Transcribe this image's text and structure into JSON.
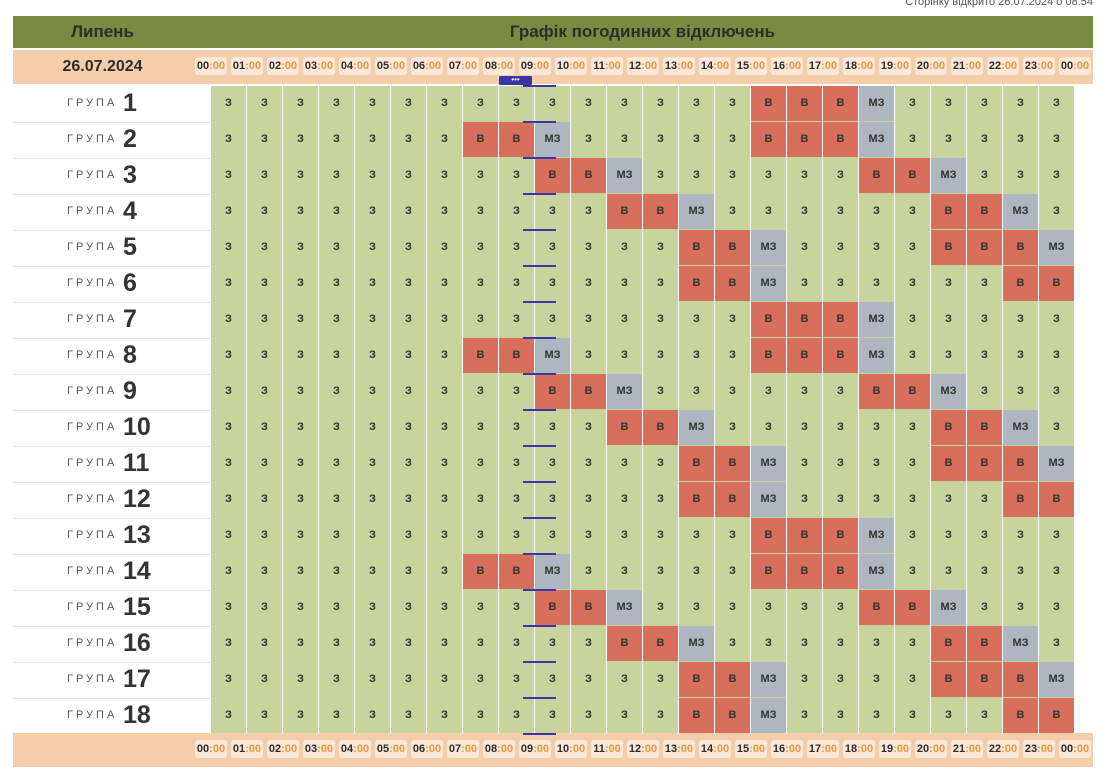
{
  "page_opened_note": "Сторінку відкрито 26.07.2024 о 08:54",
  "header": {
    "month": "Липень",
    "title": "Графік погодинних відключень"
  },
  "date": "26.07.2024",
  "group_word": "ГРУПА",
  "now_marker": "•••",
  "now_hour_index": 9,
  "hours": [
    "00",
    "01",
    "02",
    "03",
    "04",
    "05",
    "06",
    "07",
    "08",
    "09",
    "10",
    "11",
    "12",
    "13",
    "14",
    "15",
    "16",
    "17",
    "18",
    "19",
    "20",
    "21",
    "22",
    "23",
    "00"
  ],
  "hours_suffix": ":00",
  "status_labels": {
    "z": "З",
    "v": "В",
    "mz": "МЗ"
  },
  "status_colors": {
    "z": "#c7d49d",
    "v": "#d86f5d",
    "mz": "#aeb6bf"
  },
  "groups": [
    {
      "number": "1",
      "slots": [
        "z",
        "z",
        "z",
        "z",
        "z",
        "z",
        "z",
        "z",
        "z",
        "z",
        "z",
        "z",
        "z",
        "z",
        "z",
        "v",
        "v",
        "v",
        "mz",
        "z",
        "z",
        "z",
        "z",
        "z"
      ]
    },
    {
      "number": "2",
      "slots": [
        "z",
        "z",
        "z",
        "z",
        "z",
        "z",
        "z",
        "v",
        "v",
        "mz",
        "z",
        "z",
        "z",
        "z",
        "z",
        "v",
        "v",
        "v",
        "mz",
        "z",
        "z",
        "z",
        "z",
        "z"
      ]
    },
    {
      "number": "3",
      "slots": [
        "z",
        "z",
        "z",
        "z",
        "z",
        "z",
        "z",
        "z",
        "z",
        "v",
        "v",
        "mz",
        "z",
        "z",
        "z",
        "z",
        "z",
        "z",
        "v",
        "v",
        "mz",
        "z",
        "z",
        "z"
      ]
    },
    {
      "number": "4",
      "slots": [
        "z",
        "z",
        "z",
        "z",
        "z",
        "z",
        "z",
        "z",
        "z",
        "z",
        "z",
        "v",
        "v",
        "mz",
        "z",
        "z",
        "z",
        "z",
        "z",
        "z",
        "v",
        "v",
        "mz",
        "z"
      ]
    },
    {
      "number": "5",
      "slots": [
        "z",
        "z",
        "z",
        "z",
        "z",
        "z",
        "z",
        "z",
        "z",
        "z",
        "z",
        "z",
        "z",
        "v",
        "v",
        "mz",
        "z",
        "z",
        "z",
        "z",
        "v",
        "v",
        "v",
        "mz"
      ]
    },
    {
      "number": "6",
      "slots": [
        "z",
        "z",
        "z",
        "z",
        "z",
        "z",
        "z",
        "z",
        "z",
        "z",
        "z",
        "z",
        "z",
        "v",
        "v",
        "mz",
        "z",
        "z",
        "z",
        "z",
        "z",
        "z",
        "v",
        "v"
      ]
    },
    {
      "number": "7",
      "slots": [
        "z",
        "z",
        "z",
        "z",
        "z",
        "z",
        "z",
        "z",
        "z",
        "z",
        "z",
        "z",
        "z",
        "z",
        "z",
        "v",
        "v",
        "v",
        "mz",
        "z",
        "z",
        "z",
        "z",
        "z"
      ]
    },
    {
      "number": "8",
      "slots": [
        "z",
        "z",
        "z",
        "z",
        "z",
        "z",
        "z",
        "v",
        "v",
        "mz",
        "z",
        "z",
        "z",
        "z",
        "z",
        "v",
        "v",
        "v",
        "mz",
        "z",
        "z",
        "z",
        "z",
        "z"
      ]
    },
    {
      "number": "9",
      "slots": [
        "z",
        "z",
        "z",
        "z",
        "z",
        "z",
        "z",
        "z",
        "z",
        "v",
        "v",
        "mz",
        "z",
        "z",
        "z",
        "z",
        "z",
        "z",
        "v",
        "v",
        "mz",
        "z",
        "z",
        "z"
      ]
    },
    {
      "number": "10",
      "slots": [
        "z",
        "z",
        "z",
        "z",
        "z",
        "z",
        "z",
        "z",
        "z",
        "z",
        "z",
        "v",
        "v",
        "mz",
        "z",
        "z",
        "z",
        "z",
        "z",
        "z",
        "v",
        "v",
        "mz",
        "z"
      ]
    },
    {
      "number": "11",
      "slots": [
        "z",
        "z",
        "z",
        "z",
        "z",
        "z",
        "z",
        "z",
        "z",
        "z",
        "z",
        "z",
        "z",
        "v",
        "v",
        "mz",
        "z",
        "z",
        "z",
        "z",
        "v",
        "v",
        "v",
        "mz"
      ]
    },
    {
      "number": "12",
      "slots": [
        "z",
        "z",
        "z",
        "z",
        "z",
        "z",
        "z",
        "z",
        "z",
        "z",
        "z",
        "z",
        "z",
        "v",
        "v",
        "mz",
        "z",
        "z",
        "z",
        "z",
        "z",
        "z",
        "v",
        "v"
      ]
    },
    {
      "number": "13",
      "slots": [
        "z",
        "z",
        "z",
        "z",
        "z",
        "z",
        "z",
        "z",
        "z",
        "z",
        "z",
        "z",
        "z",
        "z",
        "z",
        "v",
        "v",
        "v",
        "mz",
        "z",
        "z",
        "z",
        "z",
        "z"
      ]
    },
    {
      "number": "14",
      "slots": [
        "z",
        "z",
        "z",
        "z",
        "z",
        "z",
        "z",
        "v",
        "v",
        "mz",
        "z",
        "z",
        "z",
        "z",
        "z",
        "v",
        "v",
        "v",
        "mz",
        "z",
        "z",
        "z",
        "z",
        "z"
      ]
    },
    {
      "number": "15",
      "slots": [
        "z",
        "z",
        "z",
        "z",
        "z",
        "z",
        "z",
        "z",
        "z",
        "v",
        "v",
        "mz",
        "z",
        "z",
        "z",
        "z",
        "z",
        "z",
        "v",
        "v",
        "mz",
        "z",
        "z",
        "z"
      ]
    },
    {
      "number": "16",
      "slots": [
        "z",
        "z",
        "z",
        "z",
        "z",
        "z",
        "z",
        "z",
        "z",
        "z",
        "z",
        "v",
        "v",
        "mz",
        "z",
        "z",
        "z",
        "z",
        "z",
        "z",
        "v",
        "v",
        "mz",
        "z"
      ]
    },
    {
      "number": "17",
      "slots": [
        "z",
        "z",
        "z",
        "z",
        "z",
        "z",
        "z",
        "z",
        "z",
        "z",
        "z",
        "z",
        "z",
        "v",
        "v",
        "mz",
        "z",
        "z",
        "z",
        "z",
        "v",
        "v",
        "v",
        "mz"
      ]
    },
    {
      "number": "18",
      "slots": [
        "z",
        "z",
        "z",
        "z",
        "z",
        "z",
        "z",
        "z",
        "z",
        "z",
        "z",
        "z",
        "z",
        "v",
        "v",
        "mz",
        "z",
        "z",
        "z",
        "z",
        "z",
        "z",
        "v",
        "v"
      ]
    }
  ]
}
